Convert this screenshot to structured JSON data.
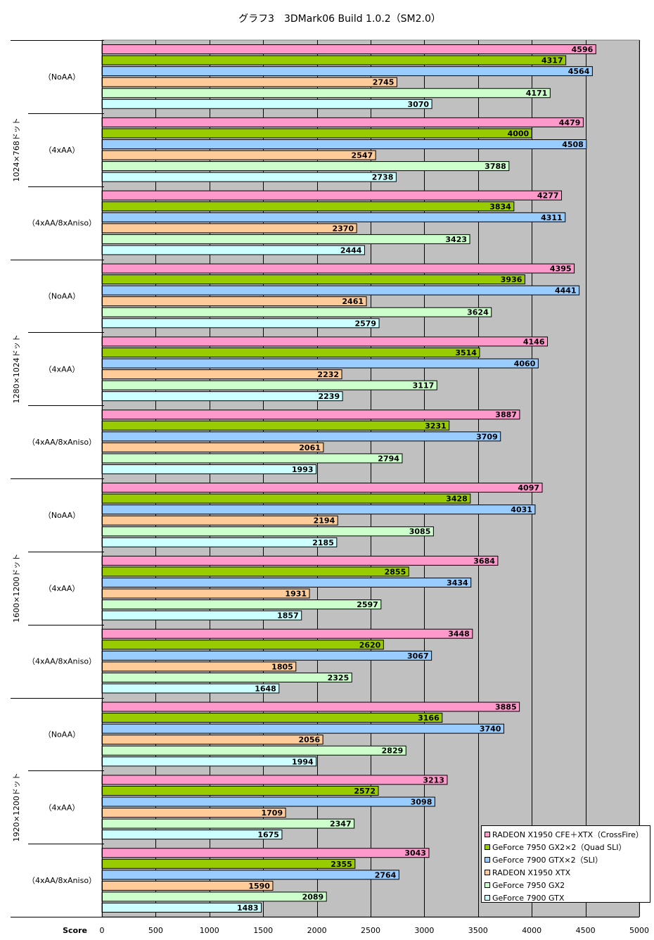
{
  "chart_data": {
    "type": "bar",
    "orientation": "horizontal",
    "title": "グラフ3　3DMark06 Build 1.0.2（SM2.0）",
    "xlabel": "Score",
    "xlim": [
      0,
      5000
    ],
    "xticks": [
      "0",
      "500",
      "1000",
      "1500",
      "2000",
      "2500",
      "3000",
      "3500",
      "4000",
      "4500",
      "5000"
    ],
    "grid": true,
    "legend_position": "bottom-right",
    "resolutions": [
      "1024×768ドット",
      "1280×1024ドット",
      "1600×1200ドット",
      "1920×1200ドット"
    ],
    "aa_modes": [
      "（NoAA）",
      "（4xAA）",
      "（4xAA/8xAniso）"
    ],
    "series": [
      {
        "name": "RADEON X1950 CFE＋XTX（CrossFire）",
        "color": "#ff99cc",
        "values": [
          4596,
          4479,
          4277,
          4395,
          4146,
          3887,
          4097,
          3684,
          3448,
          3885,
          3213,
          3043
        ]
      },
      {
        "name": "GeForce 7950 GX2×2（Quad SLI）",
        "color": "#99cc00",
        "values": [
          4317,
          4000,
          3834,
          3936,
          3514,
          3231,
          3428,
          2855,
          2620,
          3166,
          2572,
          2355
        ]
      },
      {
        "name": "GeForce 7900 GTX×2（SLI）",
        "color": "#99ccff",
        "values": [
          4564,
          4508,
          4311,
          4441,
          4060,
          3709,
          4031,
          3434,
          3067,
          3740,
          3098,
          2764
        ]
      },
      {
        "name": "RADEON X1950 XTX",
        "color": "#ffcc99",
        "values": [
          2745,
          2547,
          2370,
          2461,
          2232,
          2061,
          2194,
          1931,
          1805,
          2056,
          1709,
          1590
        ]
      },
      {
        "name": "GeForce 7950 GX2",
        "color": "#ccffcc",
        "values": [
          4171,
          3788,
          3423,
          3624,
          3117,
          2794,
          3085,
          2597,
          2325,
          2829,
          2347,
          2089
        ]
      },
      {
        "name": "GeForce 7900 GTX",
        "color": "#ccffff",
        "values": [
          3070,
          2738,
          2444,
          2579,
          2239,
          1993,
          2185,
          1857,
          1648,
          1994,
          1675,
          1483
        ]
      }
    ]
  }
}
